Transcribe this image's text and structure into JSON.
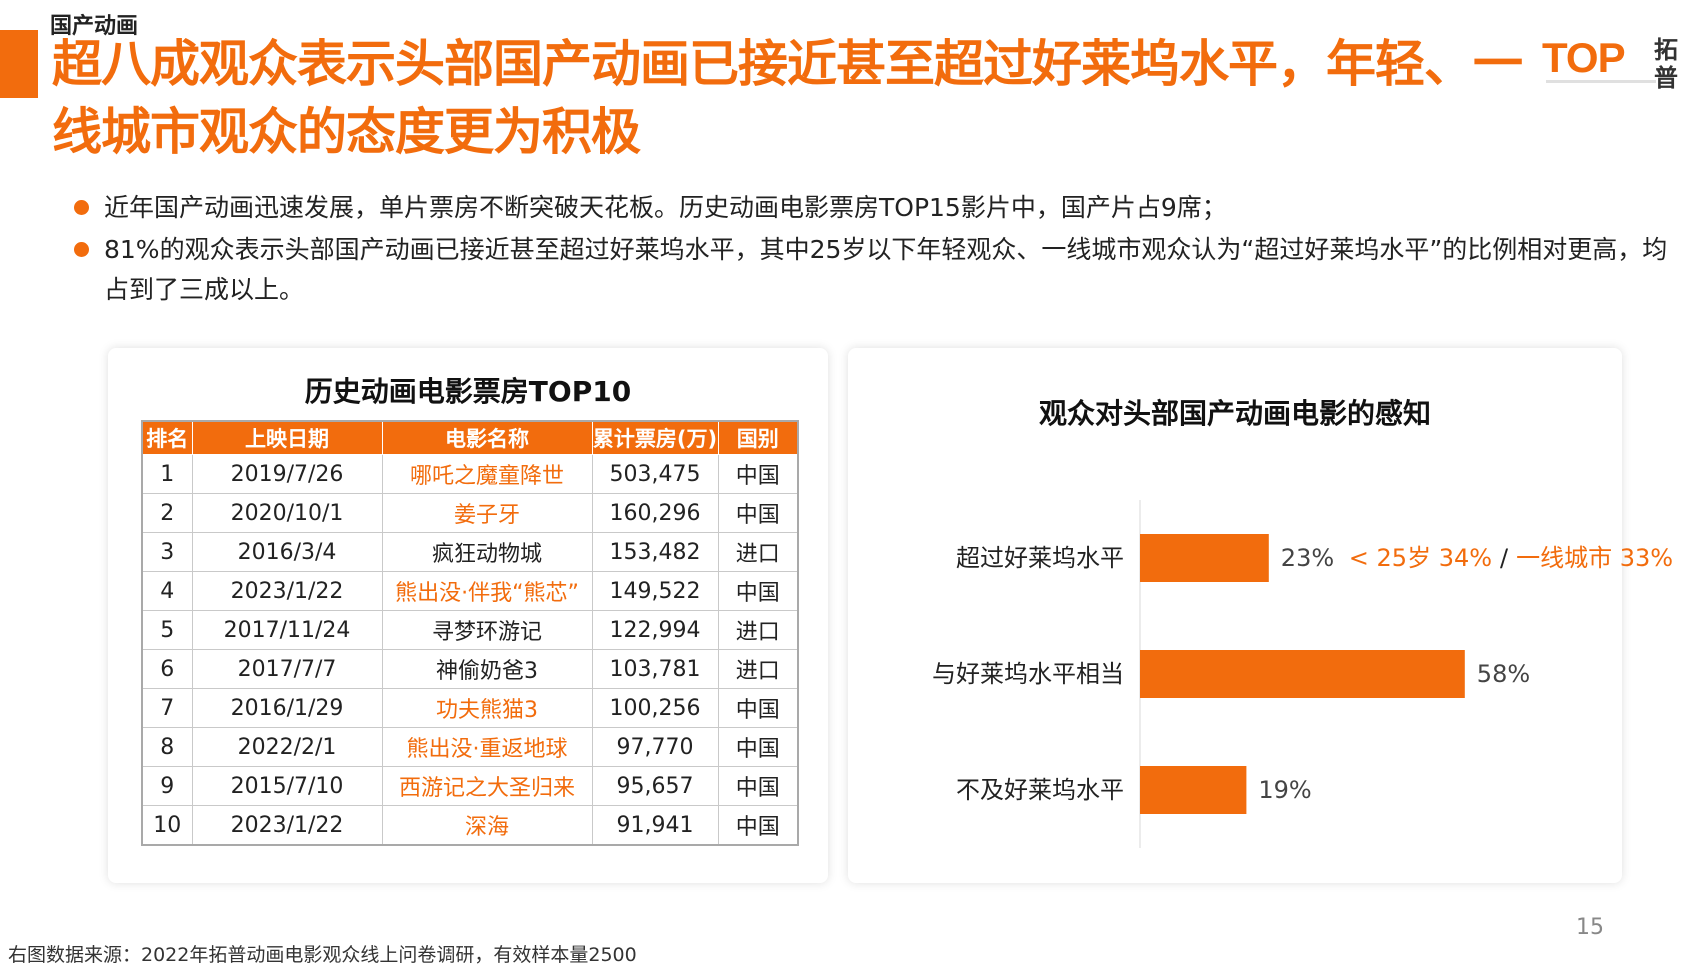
{
  "header": {
    "section": "国产动画",
    "title": "超八成观众表示头部国产动画已接近甚至超过好莱坞水平，年轻、一线城市观众的态度更为积极",
    "logo_word": "TOP",
    "logo_cn": "拓普"
  },
  "bullets": [
    "近年国产动画迅速发展，单片票房不断突破天花板。历史动画电影票房TOP15影片中，国产片占9席；",
    "81%的观众表示头部国产动画已接近甚至超过好莱坞水平，其中25岁以下年轻观众、一线城市观众认为“超过好莱坞水平”的比例相对更高，均占到了三成以上。"
  ],
  "table": {
    "title": "历史动画电影票房TOP10",
    "columns": [
      "排名",
      "上映日期",
      "电影名称",
      "累计票房(万)",
      "国别"
    ],
    "rows": [
      [
        "1",
        "2019/7/26",
        "哪吒之魔童降世",
        "503,475",
        "中国"
      ],
      [
        "2",
        "2020/10/1",
        "姜子牙",
        "160,296",
        "中国"
      ],
      [
        "3",
        "2016/3/4",
        "疯狂动物城",
        "153,482",
        "进口"
      ],
      [
        "4",
        "2023/1/22",
        "熊出没·伴我“熊芯”",
        "149,522",
        "中国"
      ],
      [
        "5",
        "2017/11/24",
        "寻梦环游记",
        "122,994",
        "进口"
      ],
      [
        "6",
        "2017/7/7",
        "神偷奶爸3",
        "103,781",
        "进口"
      ],
      [
        "7",
        "2016/1/29",
        "功夫熊猫3",
        "100,256",
        "中国"
      ],
      [
        "8",
        "2022/2/1",
        "熊出没·重返地球",
        "97,770",
        "中国"
      ],
      [
        "9",
        "2015/7/10",
        "西游记之大圣归来",
        "95,657",
        "中国"
      ],
      [
        "10",
        "2023/1/22",
        "深海",
        "91,941",
        "中国"
      ]
    ]
  },
  "chart_data": {
    "type": "bar",
    "orientation": "horizontal",
    "title": "观众对头部国产动画电影的感知",
    "categories": [
      "超过好莱坞水平",
      "与好莱坞水平相当",
      "不及好莱坞水平"
    ],
    "values": [
      23,
      58,
      19
    ],
    "value_labels": [
      "23%",
      "58%",
      "19%"
    ],
    "annotation": {
      "category": "超过好莱坞水平",
      "part1": "< 25岁 34%",
      "separator": "/",
      "part2": "一线城市 33%"
    },
    "bar_color": "#f26c0d",
    "xlim": [
      0,
      100
    ],
    "grid": false
  },
  "footer": {
    "source": "右图数据来源：2022年拓普动画电影观众线上问卷调研，有效样本量2500",
    "page": "15"
  },
  "colors": {
    "accent": "#f26c0d",
    "header_bg": "#f26c0d"
  }
}
